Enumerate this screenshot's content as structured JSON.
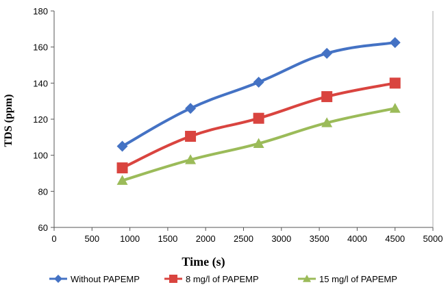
{
  "chart_data": {
    "type": "line",
    "xlabel": "Time (s)",
    "ylabel": "TDS (ppm)",
    "xlim": [
      0,
      5000
    ],
    "ylim": [
      60,
      180
    ],
    "x_ticks": [
      0,
      500,
      1000,
      1500,
      2000,
      2500,
      3000,
      3500,
      4000,
      4500,
      5000
    ],
    "y_ticks": [
      60,
      80,
      100,
      120,
      140,
      160,
      180
    ],
    "x_tick_labels": [
      "0",
      "500",
      "1000",
      "1500",
      "2000",
      "2500",
      "3000",
      "3500",
      "4000",
      "4500",
      "5000"
    ],
    "y_tick_labels": [
      "60",
      "80",
      "100",
      "120",
      "140",
      "160",
      "180"
    ],
    "grid": false,
    "legend_position": "bottom",
    "x": [
      900,
      1800,
      2700,
      3600,
      4500
    ],
    "series": [
      {
        "name": "Without PAPEMP",
        "values": [
          105,
          126,
          140.5,
          156.5,
          162.5
        ],
        "color": "#4472c4",
        "marker": "diamond"
      },
      {
        "name": "8 mg/l of PAPEMP",
        "values": [
          93,
          110.5,
          120.5,
          132.5,
          140
        ],
        "color": "#d9443f",
        "marker": "square"
      },
      {
        "name": "15 mg/l of PAPEMP",
        "values": [
          86,
          97.5,
          106.5,
          118,
          126
        ],
        "color": "#9bbb59",
        "marker": "triangle"
      }
    ]
  }
}
